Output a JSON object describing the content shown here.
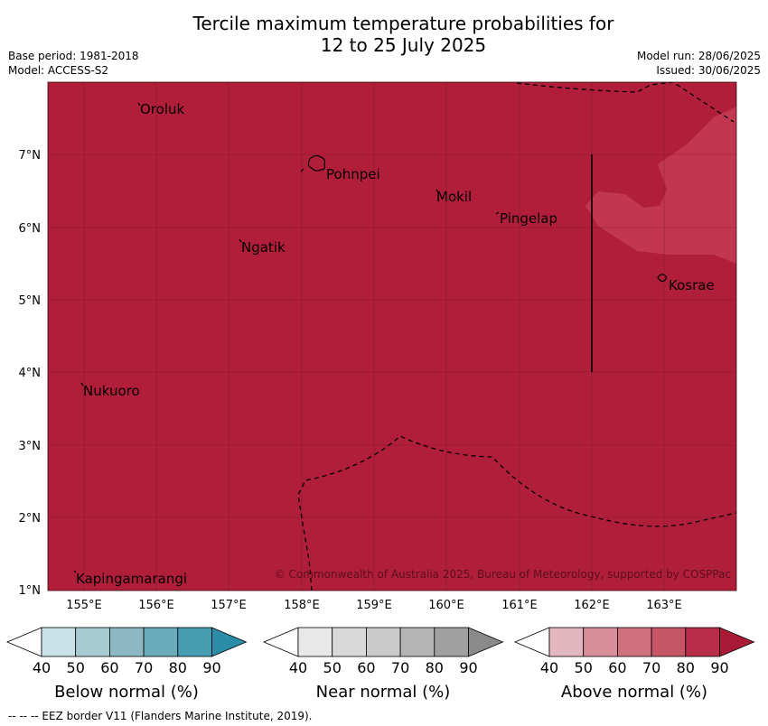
{
  "header": {
    "title_line1": "Tercile maximum temperature probabilities for",
    "title_line2": "12 to 25 July 2025",
    "base_period": "Base period: 1981-2018",
    "model": "Model: ACCESS-S2",
    "model_run": "Model run: 28/06/2025",
    "issued": "Issued: 30/06/2025"
  },
  "map": {
    "background_color": "#b11e39",
    "lat_ticks": [
      "7°N",
      "6°N",
      "5°N",
      "4°N",
      "3°N",
      "2°N",
      "1°N"
    ],
    "lon_ticks": [
      "155°E",
      "156°E",
      "157°E",
      "158°E",
      "159°E",
      "160°E",
      "161°E",
      "162°E",
      "163°E"
    ],
    "places": {
      "oroluk": "Oroluk",
      "pohnpei": "Pohnpei",
      "mokil": "Mokil",
      "pingelap": "Pingelap",
      "ngatik": "Ngatik",
      "kosrae": "Kosrae",
      "nukuoro": "Nukuoro",
      "kapingamarangi": "Kapingamarangi"
    },
    "copyright": "© Commonwealth of Australia 2025, Bureau of Meteorology, supported by COSPPac"
  },
  "legend": {
    "ticks": [
      "40",
      "50",
      "60",
      "70",
      "80",
      "90"
    ],
    "below": {
      "title": "Below normal (%)",
      "colors": [
        "#ffffff",
        "#c9e2e8",
        "#a8cad1",
        "#8bb8c2",
        "#6aabbb",
        "#469cb1",
        "#2a8ca6"
      ]
    },
    "near": {
      "title": "Near normal (%)",
      "colors": [
        "#ffffff",
        "#e8e8e8",
        "#d9d9d9",
        "#c9c9c9",
        "#b4b4b4",
        "#a0a0a0",
        "#8a8a8a"
      ]
    },
    "above": {
      "title": "Above normal (%)",
      "colors": [
        "#ffffff",
        "#e3b7bf",
        "#d88e98",
        "#cf717d",
        "#c65566",
        "#b82d47",
        "#aa1a36"
      ]
    }
  },
  "footer": "--  --  -- EEZ border V11 (Flanders Marine Institute, 2019)."
}
